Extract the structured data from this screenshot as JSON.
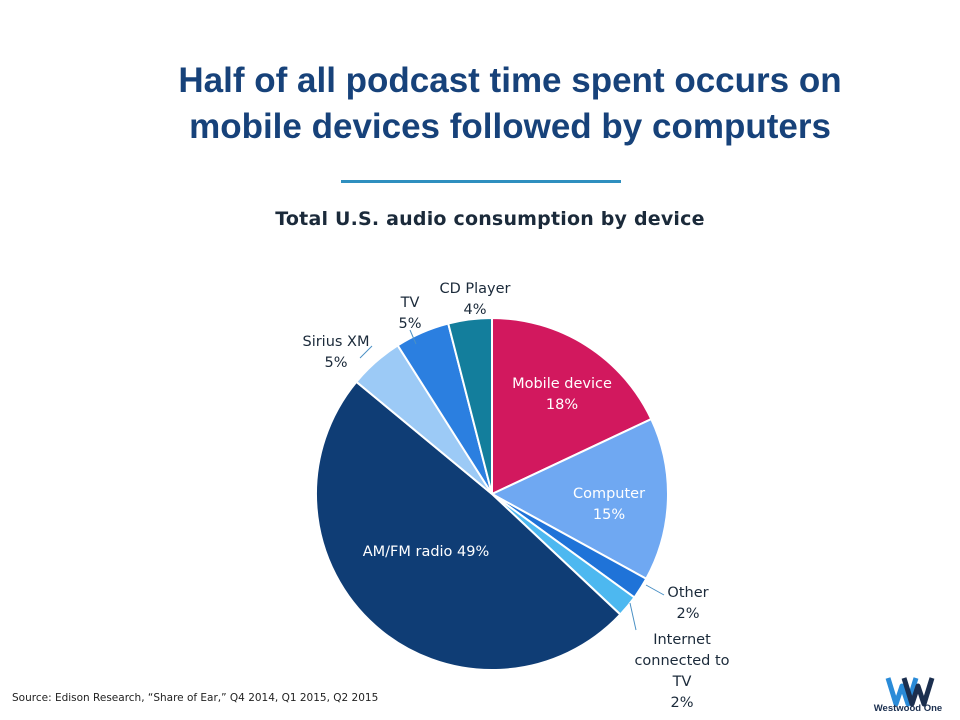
{
  "headline": {
    "line1": "Half of all podcast time spent occurs on",
    "line2": "mobile devices followed by computers"
  },
  "source": "Source: Edison Research, “Share of Ear,” Q4 2014, Q1 2015, Q2 2015",
  "logo": {
    "text": "Westwood One"
  },
  "colors": {
    "headline": "#17427a",
    "rule": "#2f8fbf",
    "label_dark": "#1b2a3a",
    "leader": "#4a90c4"
  },
  "chart_data": {
    "type": "pie",
    "title": "Total U.S. audio consumption by device",
    "start_angle_deg": 0,
    "direction": "clockwise",
    "slices": [
      {
        "name": "Mobile device",
        "value": 18,
        "label_lines": [
          "Mobile device",
          "18%"
        ],
        "color": "#d2185e",
        "label_inside": true
      },
      {
        "name": "Computer",
        "value": 15,
        "label_lines": [
          "Computer",
          "15%"
        ],
        "color": "#6fa8f2",
        "label_inside": true
      },
      {
        "name": "Other",
        "value": 2,
        "label_lines": [
          "Other",
          "2%"
        ],
        "color": "#1f73d8",
        "label_inside": false
      },
      {
        "name": "Internet connected to TV",
        "value": 2,
        "label_lines": [
          "Internet",
          "connected to",
          "TV",
          "2%"
        ],
        "color": "#4db8f0",
        "label_inside": false
      },
      {
        "name": "AM/FM radio",
        "value": 49,
        "label_lines": [
          "AM/FM radio 49%"
        ],
        "color": "#0f3d75",
        "label_inside": true
      },
      {
        "name": "Sirius XM",
        "value": 5,
        "label_lines": [
          "Sirius XM",
          "5%"
        ],
        "color": "#9ccaf6",
        "label_inside": false
      },
      {
        "name": "TV",
        "value": 5,
        "label_lines": [
          "TV",
          "5%"
        ],
        "color": "#2b7fe0",
        "label_inside": false
      },
      {
        "name": "CD Player",
        "value": 4,
        "label_lines": [
          "CD Player",
          "4%"
        ],
        "color": "#137e9c",
        "label_inside": false
      }
    ]
  }
}
